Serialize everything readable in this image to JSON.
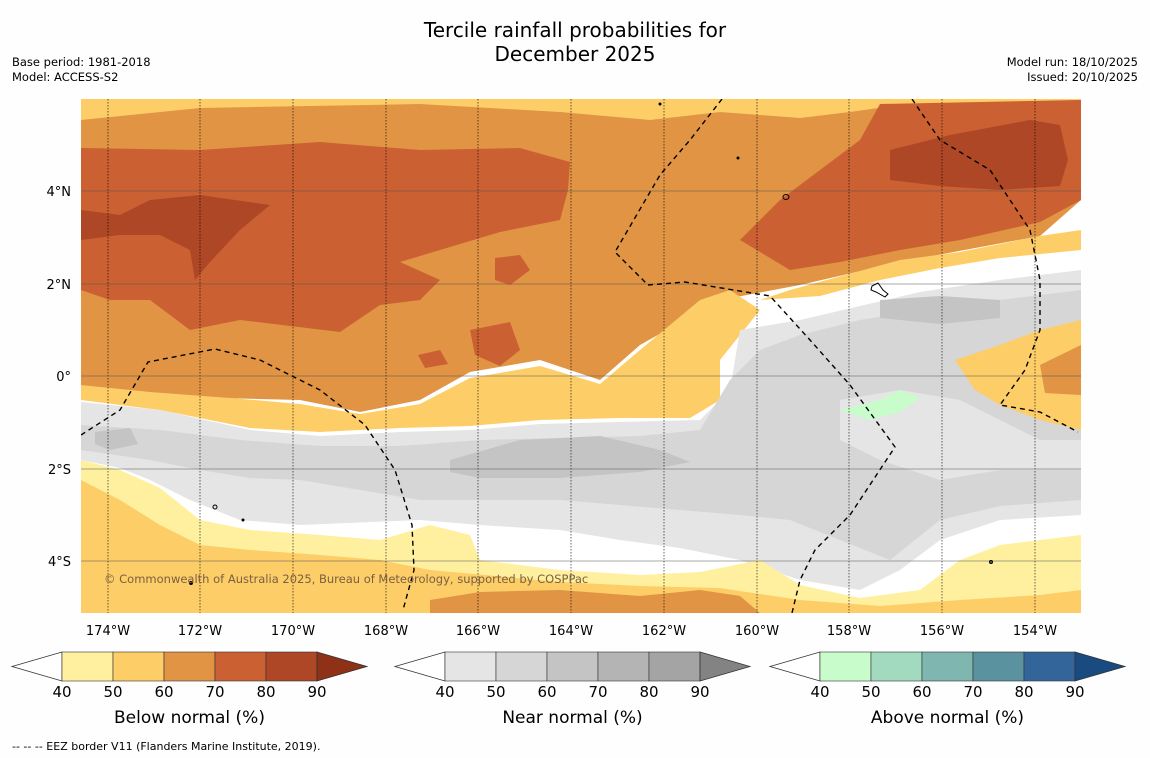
{
  "title_line1": "Tercile rainfall probabilities for",
  "title_line2": "December 2025",
  "base_period": "Base period: 1981-2018",
  "model": "Model: ACCESS-S2",
  "model_run": "Model run: 18/10/2025",
  "issued": "Issued: 20/10/2025",
  "copyright": "© Commonwealth of Australia 2025, Bureau of Meteorology, supported by COSPPac",
  "footnote": "--  --  -- EEZ border V11 (Flanders Marine Institute, 2019).",
  "lon_labels": [
    "174°W",
    "172°W",
    "170°W",
    "168°W",
    "166°W",
    "164°W",
    "162°W",
    "160°W",
    "158°W",
    "156°W",
    "154°W"
  ],
  "lat_labels": [
    "4°N",
    "2°N",
    "0°",
    "2°S",
    "4°S"
  ],
  "colorbars": [
    {
      "title": "Below normal (%)",
      "ticks": [
        "40",
        "50",
        "60",
        "70",
        "80",
        "90"
      ],
      "colors": [
        "#fff0a0",
        "#fdcd68",
        "#e09444",
        "#cb6032",
        "#ad4726",
        "#8f3116"
      ]
    },
    {
      "title": "Near normal (%)",
      "ticks": [
        "40",
        "50",
        "60",
        "70",
        "80",
        "90"
      ],
      "colors": [
        "#e5e5e5",
        "#d6d6d6",
        "#c4c4c4",
        "#b4b4b4",
        "#a4a4a4",
        "#838383"
      ]
    },
    {
      "title": "Above normal (%)",
      "ticks": [
        "40",
        "50",
        "60",
        "70",
        "80",
        "90"
      ],
      "colors": [
        "#c8fcca",
        "#a2dabf",
        "#80b6b0",
        "#5b92a0",
        "#33659b",
        "#1a4b80"
      ]
    }
  ],
  "colors": {
    "below_50_60": "#fdcd68",
    "below_60_70": "#e09444",
    "below_70_80": "#cb6032",
    "below_80_90": "#ad4726",
    "near_40_50": "#e5e5e5",
    "near_50_60": "#d6d6d6",
    "near_60_70": "#c4c4c4",
    "above_40_50": "#c8fcca",
    "below_40_50": "#fff0a0"
  }
}
